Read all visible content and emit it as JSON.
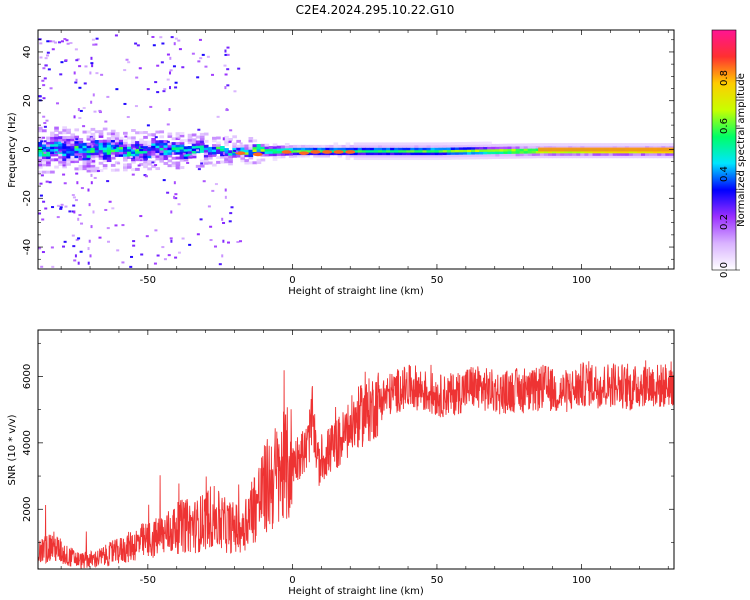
{
  "title": "C2E4.2024.295.10.22.G10",
  "chart_data": [
    {
      "type": "heatmap",
      "xlabel": "Height of straight line (km)",
      "ylabel": "Frequency (Hz)",
      "xlim": [
        -88,
        132
      ],
      "ylim": [
        -49,
        49
      ],
      "xticks": [
        -50,
        0,
        50,
        100
      ],
      "yticks": [
        -40,
        -20,
        0,
        20,
        40
      ],
      "colorbar": {
        "label": "Normalized spectral amplitude",
        "range": [
          0,
          1
        ],
        "ticks": [
          0.0,
          0.2,
          0.4,
          0.6,
          0.8
        ],
        "tick_labels": [
          "0.0",
          "0.2",
          "0.4",
          "0.6",
          "0.8"
        ],
        "colors": [
          "#ffffff",
          "#d9b3ff",
          "#9b30ff",
          "#0000ff",
          "#00e5ff",
          "#00ff66",
          "#c8ff00",
          "#ffcc00",
          "#ff3030",
          "#ff1493"
        ]
      },
      "ridge": {
        "description": "dominant frequency band near 0 Hz",
        "center_hz": 0,
        "points": [
          {
            "x": -85,
            "half_width_hz": 4,
            "amplitude": 0.45
          },
          {
            "x": -60,
            "half_width_hz": 3.5,
            "amplitude": 0.45
          },
          {
            "x": -40,
            "half_width_hz": 3,
            "amplitude": 0.4
          },
          {
            "x": -20,
            "half_width_hz": 2,
            "amplitude": 0.5
          },
          {
            "x": 0,
            "half_width_hz": 1.5,
            "amplitude": 0.6
          },
          {
            "x": 20,
            "half_width_hz": 1.5,
            "amplitude": 0.55
          },
          {
            "x": 50,
            "half_width_hz": 1.5,
            "amplitude": 0.6
          },
          {
            "x": 85,
            "half_width_hz": 1.2,
            "amplitude": 0.75
          },
          {
            "x": 132,
            "half_width_hz": 1.2,
            "amplitude": 0.85
          }
        ]
      }
    },
    {
      "type": "line",
      "xlabel": "Height of straight line (km)",
      "ylabel": "SNR (10 * v/v)",
      "xlim": [
        -88,
        132
      ],
      "ylim": [
        200,
        7400
      ],
      "xticks": [
        -50,
        0,
        50,
        100
      ],
      "yticks": [
        2000,
        4000,
        6000
      ],
      "line_color": "#ee3333",
      "series": [
        {
          "x": [
            -88,
            -83,
            -78,
            -73,
            -68,
            -63,
            -58,
            -53,
            -48,
            -43,
            -38,
            -33,
            -28,
            -23,
            -18,
            -13,
            -8,
            -3,
            2,
            5,
            7,
            9,
            12,
            17,
            22,
            27,
            32,
            37,
            42,
            47,
            52,
            57,
            62,
            67,
            72,
            77,
            82,
            87,
            92,
            97,
            102,
            107,
            112,
            117,
            122,
            127,
            132
          ],
          "y": [
            700,
            900,
            600,
            450,
            500,
            650,
            800,
            1000,
            1100,
            1300,
            1500,
            1500,
            1800,
            1500,
            1400,
            2100,
            2800,
            3200,
            3600,
            3800,
            4800,
            3300,
            3700,
            4100,
            4700,
            5000,
            5400,
            5600,
            5700,
            5500,
            5400,
            5500,
            5700,
            5600,
            5500,
            5600,
            5500,
            5700,
            5500,
            5600,
            5800,
            5700,
            5800,
            5600,
            5800,
            5700,
            5800
          ]
        }
      ]
    }
  ]
}
